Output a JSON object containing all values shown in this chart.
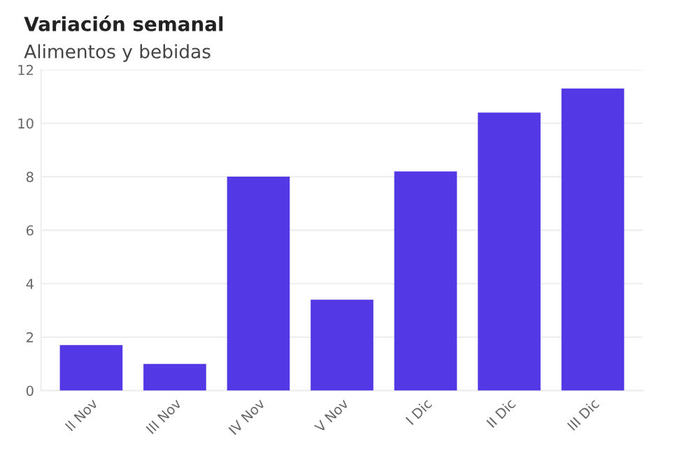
{
  "chart_data": {
    "type": "bar",
    "title": "Variación semanal",
    "subtitle": "Alimentos y bebidas",
    "categories": [
      "II Nov",
      "III Nov",
      "IV Nov",
      "V Nov",
      "I Dic",
      "II Dic",
      "III Dic"
    ],
    "series": [
      {
        "color": "#5239e5",
        "values": [
          1.7,
          1.0,
          8.0,
          3.4,
          8.2,
          10.4,
          11.3
        ]
      }
    ],
    "ylim": [
      0,
      12
    ],
    "yticks": [
      0,
      2,
      4,
      6,
      8,
      10,
      12
    ],
    "grid": "y",
    "legend": false
  }
}
